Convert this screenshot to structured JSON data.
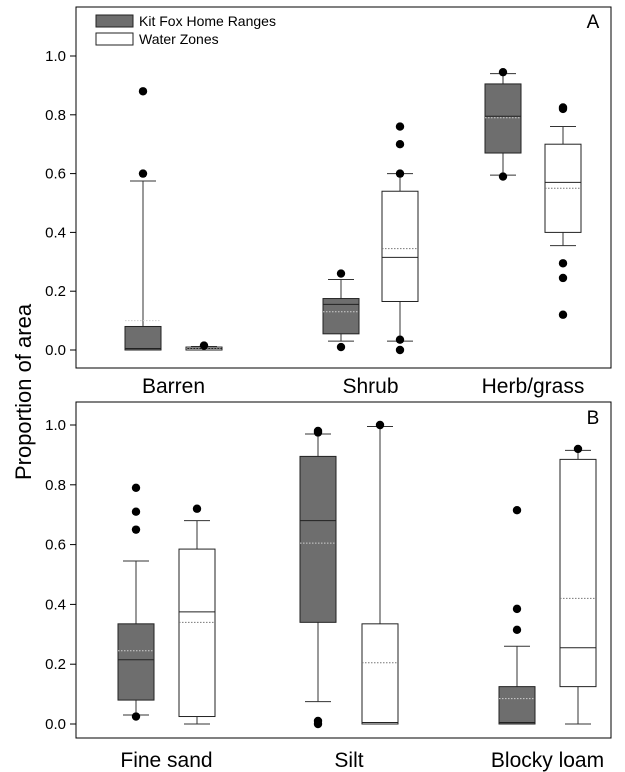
{
  "chart_data": [
    {
      "type": "box",
      "panel_label": "A",
      "categories": [
        "Barren",
        "Shrub",
        "Herb/grass"
      ],
      "ylabel": "Proportion of area",
      "ylim": [
        0,
        1.0
      ],
      "yticks": [
        "0.0",
        "0.2",
        "0.4",
        "0.6",
        "0.8",
        "1.0"
      ],
      "legend": {
        "placement": "top-left",
        "entries": [
          {
            "name": "Kit Fox Home Ranges",
            "color": "#6e6e6e"
          },
          {
            "name": "Water Zones",
            "color": "#ffffff"
          }
        ]
      },
      "series": [
        {
          "name": "Kit Fox Home Ranges",
          "color": "#6e6e6e",
          "boxes": [
            {
              "whisker_low": 0.0,
              "q1": 0.0,
              "median": 0.005,
              "q3": 0.08,
              "whisker_high": 0.575,
              "mean": 0.1,
              "outliers": [
                0.88,
                0.6
              ]
            },
            {
              "whisker_low": 0.03,
              "q1": 0.055,
              "median": 0.155,
              "q3": 0.175,
              "whisker_high": 0.24,
              "mean": 0.13,
              "outliers": [
                0.26,
                0.01
              ]
            },
            {
              "whisker_low": 0.595,
              "q1": 0.67,
              "median": 0.795,
              "q3": 0.905,
              "whisker_high": 0.94,
              "mean": 0.79,
              "outliers": [
                0.945,
                0.59
              ]
            }
          ]
        },
        {
          "name": "Water Zones",
          "color": "#ffffff",
          "boxes": [
            {
              "whisker_low": 0.0,
              "q1": 0.0,
              "median": 0.005,
              "q3": 0.01,
              "whisker_high": 0.012,
              "mean": 0.005,
              "outliers": [
                0.015
              ]
            },
            {
              "whisker_low": 0.03,
              "q1": 0.165,
              "median": 0.315,
              "q3": 0.54,
              "whisker_high": 0.6,
              "mean": 0.345,
              "outliers": [
                0.76,
                0.7,
                0.6,
                0.035,
                0.0
              ]
            },
            {
              "whisker_low": 0.355,
              "q1": 0.4,
              "median": 0.57,
              "q3": 0.7,
              "whisker_high": 0.76,
              "mean": 0.55,
              "outliers": [
                0.825,
                0.82,
                0.295,
                0.245,
                0.12
              ]
            }
          ]
        }
      ]
    },
    {
      "type": "box",
      "panel_label": "B",
      "categories": [
        "Fine sand",
        "Silt",
        "Blocky loam"
      ],
      "ylabel": "Proportion of area",
      "ylim": [
        0,
        1.0
      ],
      "yticks": [
        "0.0",
        "0.2",
        "0.4",
        "0.6",
        "0.8",
        "1.0"
      ],
      "series": [
        {
          "name": "Kit Fox Home Ranges",
          "color": "#6e6e6e",
          "boxes": [
            {
              "whisker_low": 0.03,
              "q1": 0.08,
              "median": 0.215,
              "q3": 0.335,
              "whisker_high": 0.545,
              "mean": 0.245,
              "outliers": [
                0.79,
                0.71,
                0.65,
                0.025
              ]
            },
            {
              "whisker_low": 0.075,
              "q1": 0.34,
              "median": 0.68,
              "q3": 0.895,
              "whisker_high": 0.97,
              "mean": 0.605,
              "outliers": [
                0.98,
                0.975,
                0.01,
                0.0
              ]
            },
            {
              "whisker_low": 0.0,
              "q1": 0.0,
              "median": 0.005,
              "q3": 0.125,
              "whisker_high": 0.26,
              "mean": 0.085,
              "outliers": [
                0.715,
                0.385,
                0.315
              ]
            }
          ]
        },
        {
          "name": "Water Zones",
          "color": "#ffffff",
          "boxes": [
            {
              "whisker_low": 0.0,
              "q1": 0.025,
              "median": 0.375,
              "q3": 0.585,
              "whisker_high": 0.68,
              "mean": 0.34,
              "outliers": [
                0.72
              ]
            },
            {
              "whisker_low": 0.0,
              "q1": 0.0,
              "median": 0.005,
              "q3": 0.335,
              "whisker_high": 0.995,
              "mean": 0.205,
              "outliers": [
                1.0
              ]
            },
            {
              "whisker_low": 0.0,
              "q1": 0.125,
              "median": 0.255,
              "q3": 0.885,
              "whisker_high": 0.915,
              "mean": 0.42,
              "outliers": [
                0.92
              ]
            }
          ]
        }
      ]
    }
  ]
}
